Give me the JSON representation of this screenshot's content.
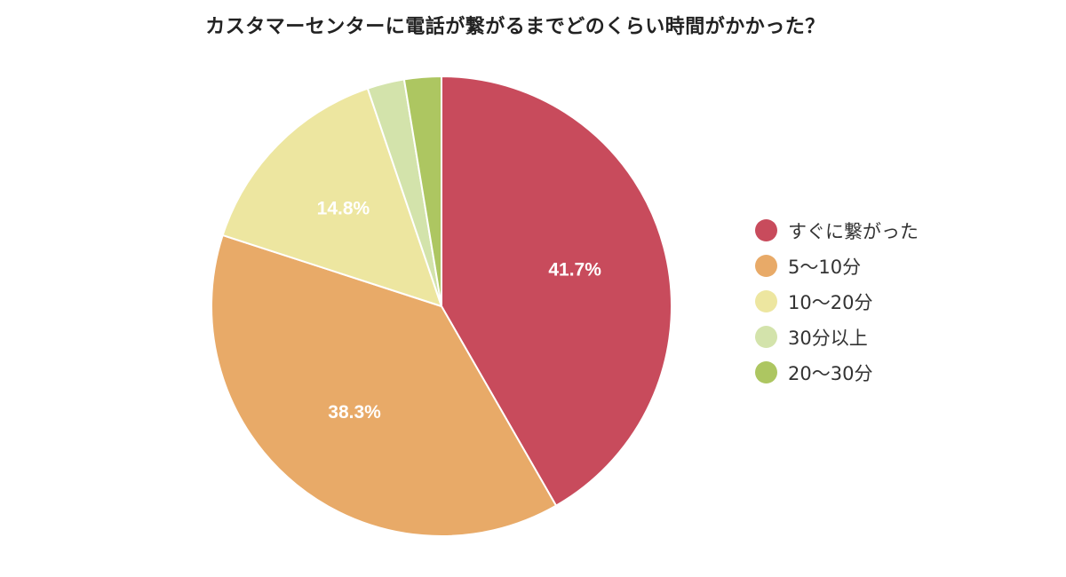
{
  "chart_data": {
    "type": "pie",
    "title": "カスタマーセンターに電話が繋がるまでどのくらい時間がかかった？",
    "legend_position": "right",
    "slices": [
      {
        "label": "すぐに繋がった",
        "value": 41.7,
        "display": "41.7%",
        "color": "#c84b5c"
      },
      {
        "label": "5〜10分",
        "value": 38.3,
        "display": "38.3%",
        "color": "#e8aa68"
      },
      {
        "label": "10〜20分",
        "value": 14.8,
        "display": "14.8%",
        "color": "#ede6a0"
      },
      {
        "label": "30分以上",
        "value": 2.6,
        "display": "",
        "color": "#d3e3ab"
      },
      {
        "label": "20〜30分",
        "value": 2.6,
        "display": "",
        "color": "#adc661"
      }
    ],
    "slice_order": [
      0,
      1,
      2,
      3,
      4
    ]
  }
}
